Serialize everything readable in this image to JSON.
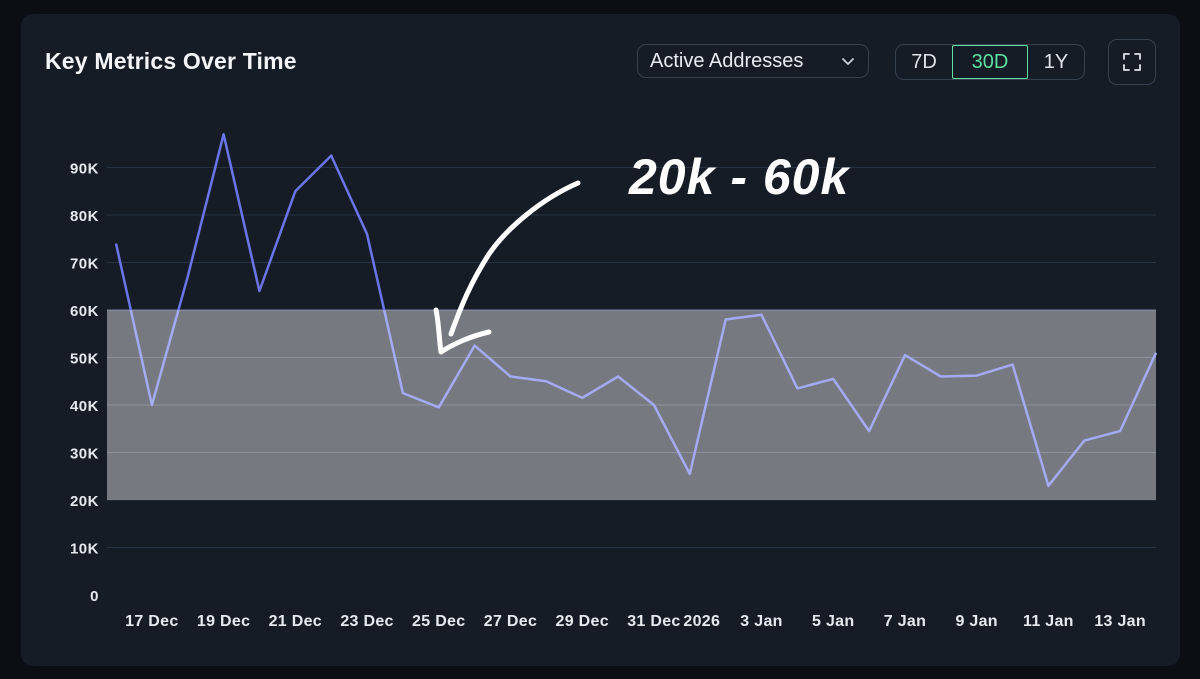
{
  "header": {
    "title": "Key Metrics Over Time",
    "metric_select": {
      "selected": "Active Addresses",
      "icon": "chevron-down-icon"
    },
    "ranges": [
      "7D",
      "30D",
      "1Y"
    ],
    "active_range": "30D",
    "fullscreen_icon": "expand-icon"
  },
  "annotation": {
    "text": "20k - 60k",
    "arrow_icon": "hand-drawn-arrow-icon"
  },
  "colors": {
    "line_upper": "#6b74e8",
    "line_lower": "#a5aaf5",
    "band": "#7b7e84",
    "grid": "#253343",
    "accent": "#5ee0a0"
  },
  "chart_data": {
    "type": "line",
    "title": "Key Metrics Over Time",
    "series": [
      {
        "name": "Active Addresses",
        "values": [
          74000,
          40000,
          67000,
          97000,
          64000,
          85000,
          92500,
          76000,
          42500,
          39500,
          52500,
          46000,
          45000,
          41500,
          46000,
          40000,
          25500,
          58000,
          59000,
          43500,
          45500,
          34500,
          50500,
          46000,
          46200,
          48500,
          23000,
          32500,
          34500,
          51000
        ]
      }
    ],
    "x_tick_labels": [
      "17 Dec",
      "19 Dec",
      "21 Dec",
      "23 Dec",
      "25 Dec",
      "27 Dec",
      "29 Dec",
      "31 Dec",
      "2026",
      "3 Jan",
      "5 Jan",
      "7 Jan",
      "9 Jan",
      "11 Jan",
      "13 Jan"
    ],
    "x_tick_positions": [
      1,
      3,
      5,
      7,
      9,
      11,
      13,
      15,
      16,
      18,
      20,
      22,
      24,
      26,
      28
    ],
    "y_ticks": [
      0,
      10000,
      20000,
      30000,
      40000,
      50000,
      60000,
      70000,
      80000,
      90000
    ],
    "y_tick_labels": [
      "0",
      "10K",
      "20K",
      "30K",
      "40K",
      "50K",
      "60K",
      "70K",
      "80K",
      "90K"
    ],
    "ylim": [
      0,
      100000
    ],
    "highlight_band": {
      "from": 20000,
      "to": 60000
    },
    "grid": true,
    "xlabel": "",
    "ylabel": ""
  }
}
